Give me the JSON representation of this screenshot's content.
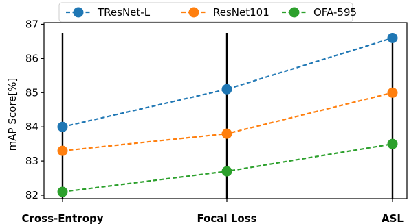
{
  "chart_data": {
    "type": "line",
    "categories": [
      "Cross-Entropy",
      "Focal Loss",
      "ASL"
    ],
    "series": [
      {
        "name": "TResNet-L",
        "values": [
          84.0,
          85.1,
          86.6
        ],
        "color": "#1f77b4"
      },
      {
        "name": "ResNet101",
        "values": [
          83.3,
          83.8,
          85.0
        ],
        "color": "#ff7f0e"
      },
      {
        "name": "OFA-595",
        "values": [
          82.1,
          82.7,
          83.5
        ],
        "color": "#2ca02c"
      }
    ],
    "ylabel": "mAP Score[%]",
    "ylim": [
      81.9,
      87.05
    ],
    "yticks": [
      82,
      83,
      84,
      85,
      86,
      87
    ],
    "legend_position": "top",
    "vertical_lines_at_categories": true,
    "line_style": "dashed",
    "marker": "circle"
  }
}
